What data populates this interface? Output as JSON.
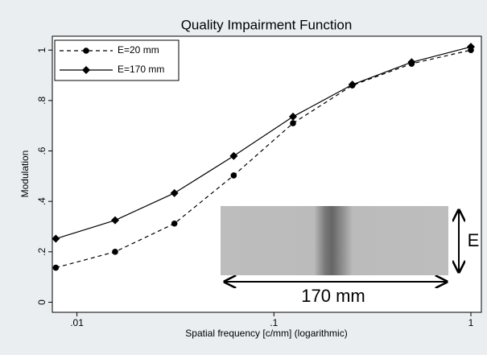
{
  "chart_data": {
    "type": "line",
    "title": "Quality Impairment Function",
    "x_label": "Spatial frequency [c/mm] (logarithmic)",
    "y_label": "Modulation",
    "x": [
      0.0078125,
      0.015625,
      0.03125,
      0.0625,
      0.125,
      0.25,
      0.5,
      1
    ],
    "series": [
      {
        "name": "E=20 mm",
        "color": "#000000",
        "dash": true,
        "marker": "circle",
        "values": [
          0.137,
          0.2,
          0.312,
          0.503,
          0.71,
          0.86,
          0.946,
          1.0
        ]
      },
      {
        "name": "E=170 mm",
        "color": "#000000",
        "dash": false,
        "marker": "diamond",
        "values": [
          0.252,
          0.325,
          0.433,
          0.58,
          0.736,
          0.863,
          0.952,
          1.013
        ]
      }
    ],
    "xlog": true,
    "xlim": [
      0.0075,
      1.13
    ],
    "ylim": [
      -0.04,
      1.055
    ],
    "xticks": [
      {
        "value": 0.01,
        "label": ".01"
      },
      {
        "value": 0.1,
        "label": ".1"
      },
      1
    ],
    "yticks": [
      0,
      {
        "value": 0.2,
        "label": ".2"
      },
      {
        "value": 0.4,
        "label": ".4"
      },
      {
        "value": 0.6,
        "label": ".6"
      },
      {
        "value": 0.8,
        "label": ".8"
      },
      1
    ],
    "legend": "top-left",
    "annotations": {
      "width": "170 mm",
      "height": "E"
    }
  }
}
